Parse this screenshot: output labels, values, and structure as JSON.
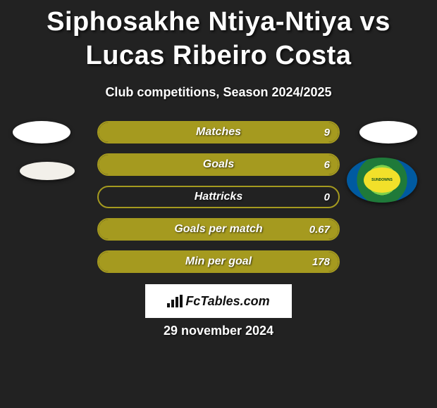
{
  "title": "Siphosakhe Ntiya-Ntiya vs Lucas Ribeiro Costa",
  "subtitle": "Club competitions, Season 2024/2025",
  "accent_color": "#a59a1f",
  "background_color": "#222222",
  "stats": [
    {
      "label": "Matches",
      "right_value": "9",
      "fill_percent": 100
    },
    {
      "label": "Goals",
      "right_value": "6",
      "fill_percent": 100
    },
    {
      "label": "Hattricks",
      "right_value": "0",
      "fill_percent": 0
    },
    {
      "label": "Goals per match",
      "right_value": "0.67",
      "fill_percent": 100
    },
    {
      "label": "Min per goal",
      "right_value": "178",
      "fill_percent": 100
    }
  ],
  "brand": "FcTables.com",
  "date": "29 november 2024",
  "badges": {
    "left1_bg": "#ffffff",
    "left2_bg": "#f2f0ea",
    "right1_bg": "#ffffff",
    "club_label": "SUNDOWNS"
  },
  "style": {
    "title_fontsize": 38,
    "subtitle_fontsize": 18,
    "stat_bar_width": 344,
    "stat_bar_height": 32,
    "stat_bar_radius": 16,
    "stat_label_fontsize": 16,
    "value_fontsize": 15,
    "brand_box_width": 208,
    "brand_box_height": 48,
    "brand_fontsize": 18,
    "date_fontsize": 18,
    "text_color": "#ffffff"
  }
}
